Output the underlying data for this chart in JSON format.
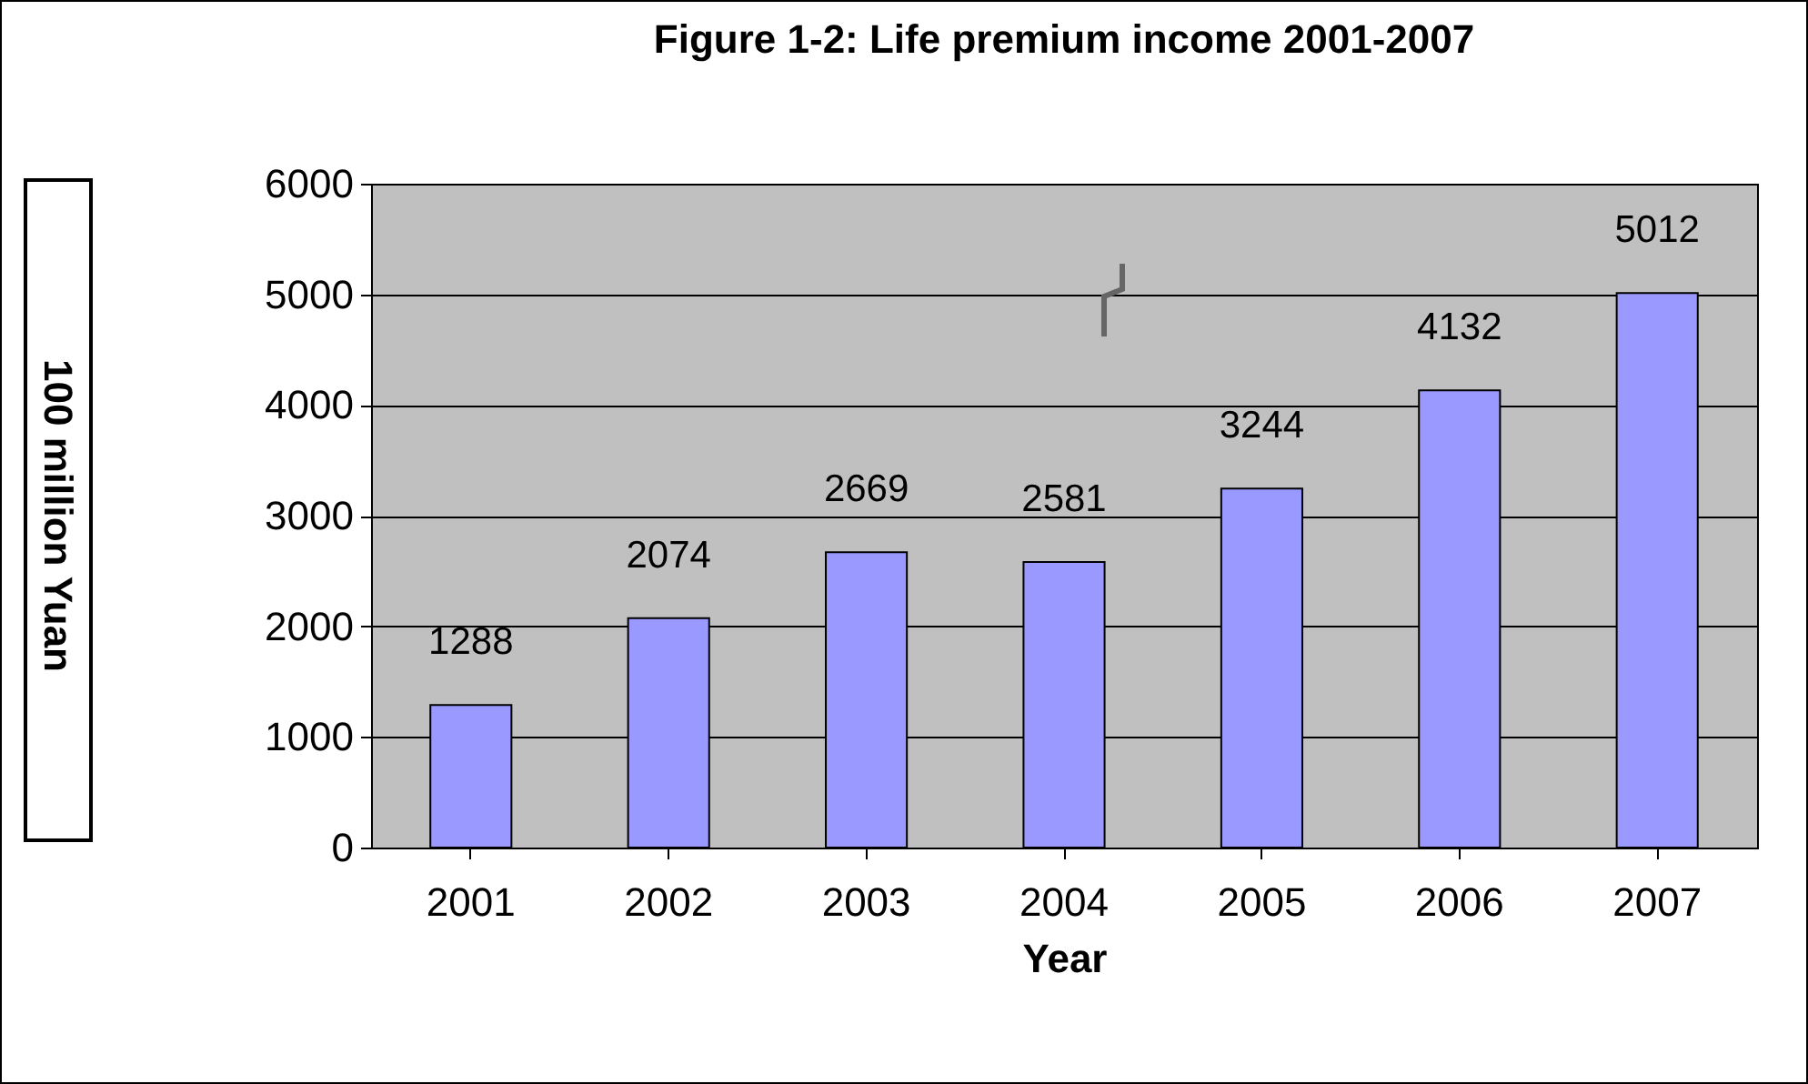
{
  "chart_data": {
    "type": "bar",
    "title": "Figure 1-2: Life premium income 2001-2007",
    "xlabel": "Year",
    "ylabel": "100 million Yuan",
    "categories": [
      "2001",
      "2002",
      "2003",
      "2004",
      "2005",
      "2006",
      "2007"
    ],
    "values": [
      1288,
      2074,
      2669,
      2581,
      3244,
      4132,
      5012
    ],
    "color": "#9999ff",
    "ylim": [
      0,
      6000
    ],
    "yticks": [
      0,
      1000,
      2000,
      3000,
      4000,
      5000,
      6000
    ],
    "grid": "y",
    "data_labels": true
  }
}
